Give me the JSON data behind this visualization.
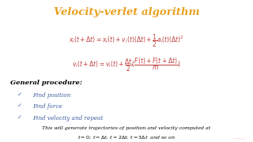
{
  "title": "Velocity-verlet algorithm",
  "title_color": "#E8A020",
  "title_fontsize": 9.5,
  "eq1": "$x_i(t + \\Delta t) = x_i(t) + v_i(t)(\\Delta t) + \\dfrac{1}{2}a_i(t)(\\Delta t)^2$",
  "eq2": "$v_i(t + \\Delta t) = v_i(t) + \\dfrac{\\Delta t}{2}(\\dfrac{F(t) + F(t + \\Delta t)}{m})$",
  "eq_color": "#C04040",
  "eq_fontsize": 5.5,
  "general_label": "General procedure:",
  "general_fontsize": 6.0,
  "bullets": [
    "Find position",
    "Find force",
    "Find velocity and repeat"
  ],
  "bullet_color": "#4060A0",
  "bullet_fontsize": 5.2,
  "general_color": "#000000",
  "footer": "This will generate trajectories of position and velocity computed at",
  "footer2": "$t = 0;\\; t = \\Delta t;\\; t = 2\\Delta t;\\; t = 3\\Delta t$  and so on",
  "footer_color": "#000000",
  "footer_fontsize": 4.5,
  "bg_color": "#FFFFFF",
  "watermark": "made-pl",
  "watermark_color": "#E8C8C8",
  "watermark_fontsize": 2.8
}
